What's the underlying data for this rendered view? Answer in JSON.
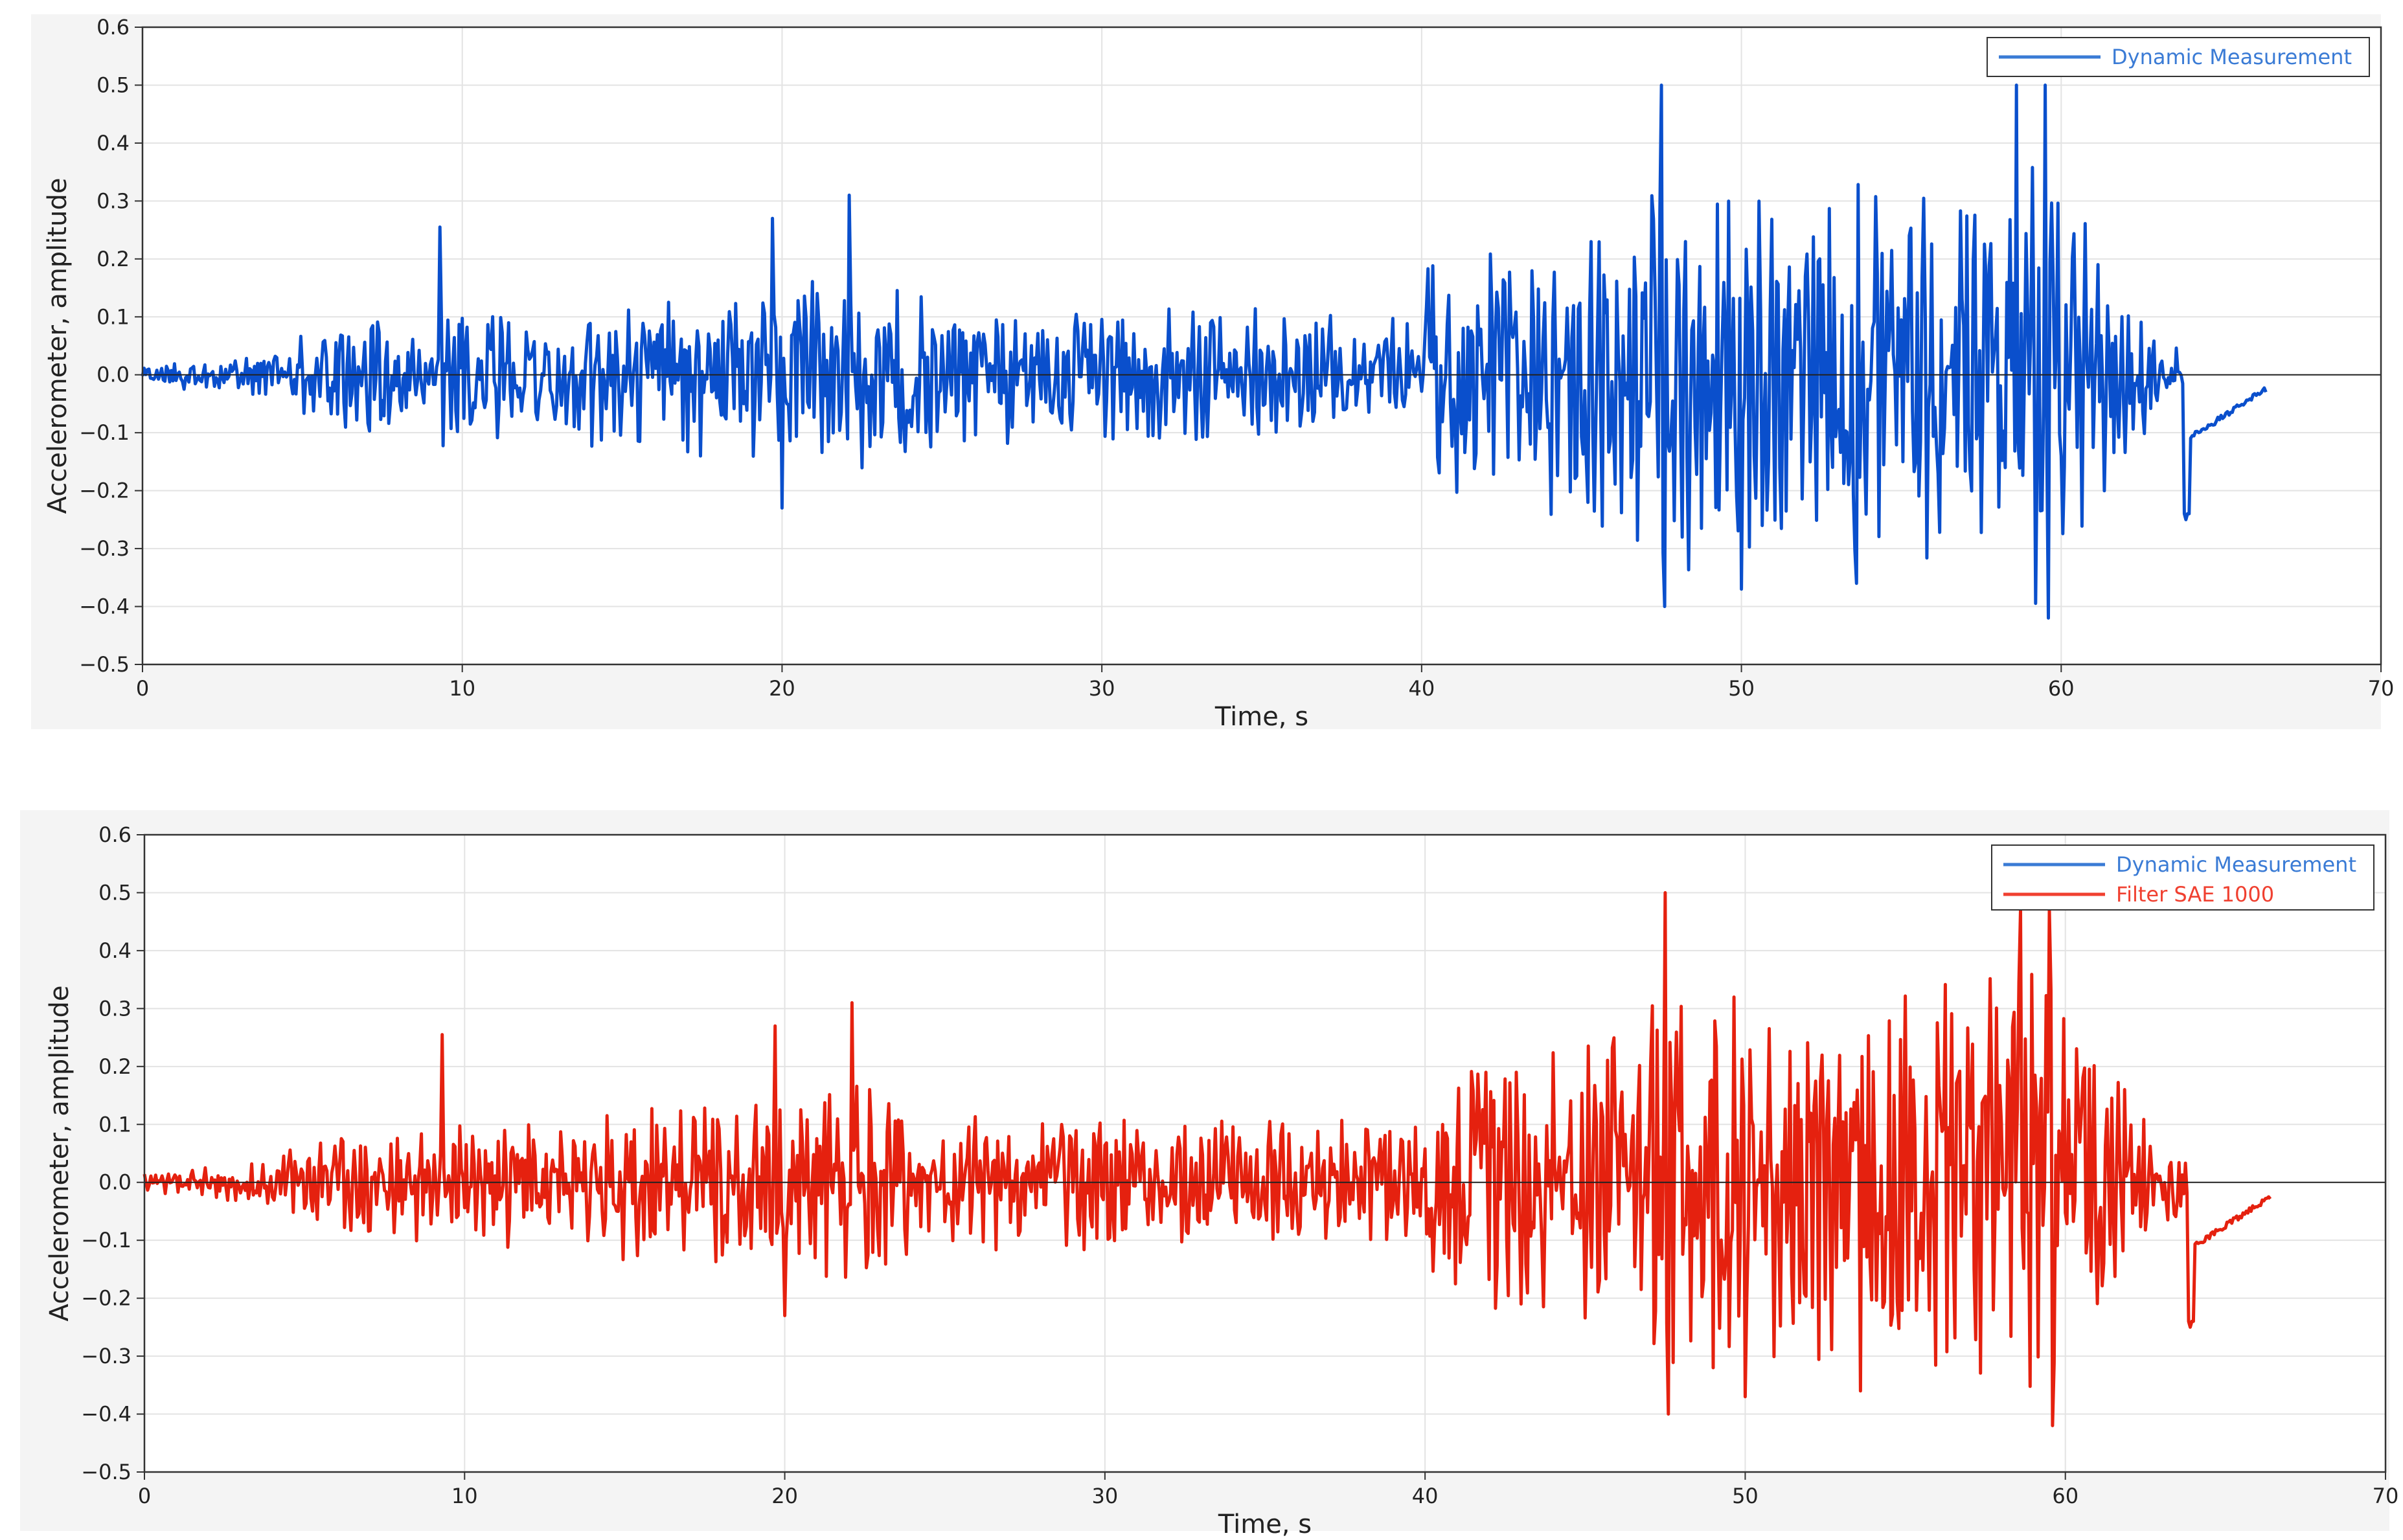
{
  "colors": {
    "dynamic": "#0a4fcc",
    "filter": "#e5210f",
    "legend_dynamic": "#3a7bd5",
    "legend_filter": "#f04030",
    "grid": "#e3e3e3",
    "axis": "#333333"
  },
  "chart_data": [
    {
      "type": "line",
      "xlabel": "Time, s",
      "ylabel": "Accelerometer, amplitude",
      "xlim": [
        0,
        70
      ],
      "ylim": [
        -0.5,
        0.6
      ],
      "xticks": [
        "0",
        "10",
        "20",
        "30",
        "40",
        "50",
        "60",
        "70"
      ],
      "yticks": [
        "0.6",
        "0.5",
        "0.4",
        "0.3",
        "0.2",
        "0.1",
        "0.0",
        "−0.1",
        "−0.2",
        "−0.3",
        "−0.4",
        "−0.5"
      ],
      "grid": true,
      "legend_position": "top-right",
      "series": [
        {
          "name": "Dynamic Measurement",
          "color": "#0a4fcc",
          "legend_color": "#3a7bd5",
          "x_end": 66.4,
          "envelope": {
            "t": [
              0,
              4,
              6,
              9,
              12,
              19,
              22,
              25,
              30,
              35,
              39.8,
              40.3,
              44,
              47,
              52,
              57,
              59,
              61.5,
              63,
              64,
              66.4
            ],
            "a": [
              0.02,
              0.04,
              0.1,
              0.13,
              0.12,
              0.16,
              0.18,
              0.13,
              0.12,
              0.12,
              0.1,
              0.24,
              0.24,
              0.36,
              0.32,
              0.36,
              0.42,
              0.2,
              0.07,
              0.05,
              0.01
            ]
          },
          "peaks": [
            [
              9.3,
              0.255
            ],
            [
              19.7,
              0.27
            ],
            [
              22.1,
              0.31
            ],
            [
              47.5,
              0.5
            ],
            [
              58.6,
              0.5
            ],
            [
              59.5,
              0.5
            ],
            [
              59.6,
              -0.42
            ],
            [
              47.6,
              -0.4
            ],
            [
              50.0,
              -0.37
            ],
            [
              53.6,
              -0.36
            ],
            [
              20.0,
              -0.23
            ],
            [
              63.9,
              -0.25
            ]
          ]
        }
      ]
    },
    {
      "type": "line",
      "xlabel": "Time, s",
      "ylabel": "Accelerometer, amplitude",
      "xlim": [
        0,
        70
      ],
      "ylim": [
        -0.5,
        0.6
      ],
      "xticks": [
        "0",
        "10",
        "20",
        "30",
        "40",
        "50",
        "60",
        "70"
      ],
      "yticks": [
        "0.6",
        "0.5",
        "0.4",
        "0.3",
        "0.2",
        "0.1",
        "0.0",
        "−0.1",
        "−0.2",
        "−0.3",
        "−0.4",
        "−0.5"
      ],
      "grid": true,
      "legend_position": "top-right",
      "series": [
        {
          "name": "Dynamic Measurement",
          "color": "#0a4fcc",
          "legend_color": "#3a7bd5"
        },
        {
          "name": "Filter SAE 1000",
          "color": "#e5210f",
          "legend_color": "#f04030",
          "x_end": 66.4,
          "envelope": {
            "t": [
              0,
              4,
              6,
              9,
              12,
              19,
              22,
              25,
              30,
              35,
              39.8,
              40.3,
              44,
              47,
              52,
              57,
              59,
              61.5,
              63,
              64,
              66.4
            ],
            "a": [
              0.02,
              0.04,
              0.1,
              0.13,
              0.12,
              0.16,
              0.18,
              0.13,
              0.12,
              0.12,
              0.1,
              0.24,
              0.24,
              0.36,
              0.32,
              0.36,
              0.42,
              0.2,
              0.07,
              0.05,
              0.01
            ]
          },
          "peaks": [
            [
              9.3,
              0.255
            ],
            [
              19.7,
              0.27
            ],
            [
              22.1,
              0.31
            ],
            [
              47.5,
              0.5
            ],
            [
              58.6,
              0.47
            ],
            [
              59.5,
              0.47
            ],
            [
              59.6,
              -0.42
            ],
            [
              47.6,
              -0.4
            ],
            [
              50.0,
              -0.37
            ],
            [
              53.6,
              -0.36
            ],
            [
              20.0,
              -0.23
            ],
            [
              63.9,
              -0.25
            ]
          ]
        }
      ]
    }
  ]
}
